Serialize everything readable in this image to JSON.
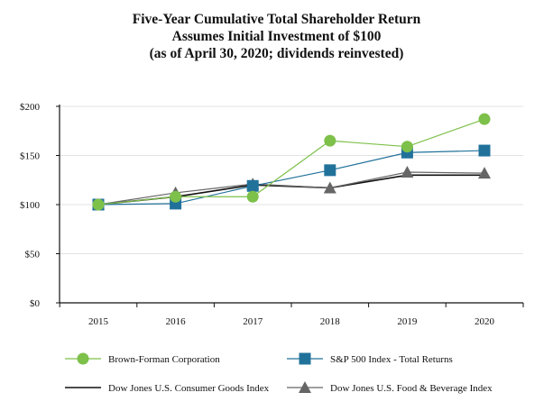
{
  "chart_data": {
    "type": "line",
    "title": [
      "Five-Year Cumulative Total Shareholder Return",
      "Assumes Initial Investment of $100",
      "(as of April 30, 2020; dividends reinvested)"
    ],
    "xlabel": "",
    "ylabel": "",
    "categories": [
      "2015",
      "2016",
      "2017",
      "2018",
      "2019",
      "2020"
    ],
    "ylim": [
      0,
      200
    ],
    "yticks": [
      0,
      50,
      100,
      150,
      200
    ],
    "ytick_labels": [
      "$0",
      "$50",
      "$100",
      "$150",
      "$200"
    ],
    "grid": true,
    "legend_placement": "bottom",
    "series": [
      {
        "name": "Brown-Forman Corporation",
        "values": [
          100,
          108,
          108,
          165,
          159,
          187
        ],
        "color": "#7dc04a",
        "marker": "circle"
      },
      {
        "name": "S&P 500 Index - Total Returns",
        "values": [
          100,
          101,
          119,
          135,
          153,
          155
        ],
        "color": "#21729b",
        "marker": "square"
      },
      {
        "name": "Dow Jones U.S. Consumer Goods Index",
        "values": [
          100,
          108,
          120,
          117,
          130,
          130
        ],
        "color": "#111111",
        "marker": "none"
      },
      {
        "name": "Dow Jones U.S. Food & Beverage Index",
        "values": [
          100,
          112,
          121,
          117,
          133,
          132
        ],
        "color": "#666666",
        "marker": "triangle"
      }
    ]
  }
}
